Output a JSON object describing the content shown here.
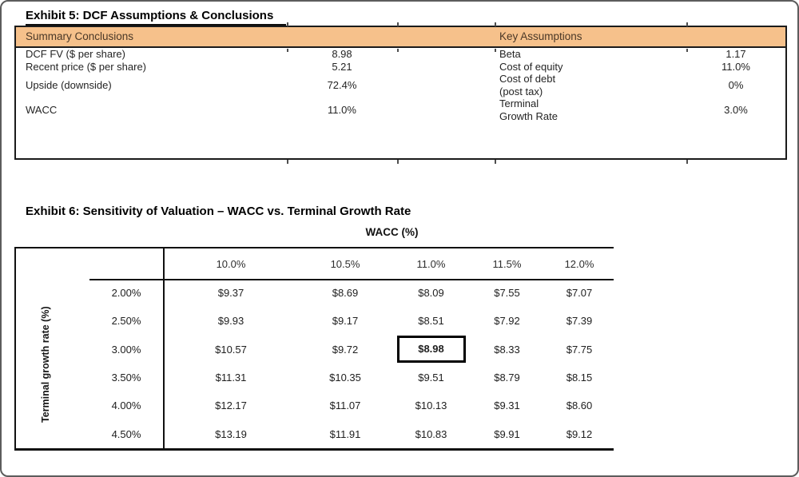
{
  "exhibit5": {
    "title": "Exhibit 5: DCF Assumptions & Conclusions",
    "header": {
      "left": "Summary Conclusions",
      "right": "Key Assumptions",
      "bg_color": "#F6C18B"
    },
    "rows": [
      {
        "label": "DCF FV ($ per share)",
        "value": "8.98",
        "key_label": "Beta",
        "key_label2": "",
        "key_value": "1.17"
      },
      {
        "label": "Recent price ($ per share)",
        "value": "5.21",
        "key_label": "Cost of equity",
        "key_label2": "",
        "key_value": "11.0%"
      },
      {
        "label": "Upside (downside)",
        "value": "72.4%",
        "key_label": "Cost of debt",
        "key_label2": "(post tax)",
        "key_value": "0%"
      },
      {
        "label": "WACC",
        "value": "11.0%",
        "key_label": "Terminal",
        "key_label2": "Growth Rate",
        "key_value": "3.0%"
      }
    ],
    "stripe_color": "#EDEDED"
  },
  "exhibit6": {
    "title": "Exhibit 6: Sensitivity of Valuation – WACC vs. Terminal Growth Rate",
    "col_axis_label": "WACC (%)",
    "row_axis_label": "Terminal growth rate (%)",
    "columns": [
      "10.0%",
      "10.5%",
      "11.0%",
      "11.5%",
      "12.0%"
    ],
    "rows": [
      {
        "label": "2.00%",
        "values": [
          "$9.37",
          "$8.69",
          "$8.09",
          "$7.55",
          "$7.07"
        ]
      },
      {
        "label": "2.50%",
        "values": [
          "$9.93",
          "$9.17",
          "$8.51",
          "$7.92",
          "$7.39"
        ]
      },
      {
        "label": "3.00%",
        "values": [
          "$10.57",
          "$9.72",
          "$8.98",
          "$8.33",
          "$7.75"
        ]
      },
      {
        "label": "3.50%",
        "values": [
          "$11.31",
          "$10.35",
          "$9.51",
          "$8.79",
          "$8.15"
        ]
      },
      {
        "label": "4.00%",
        "values": [
          "$12.17",
          "$11.07",
          "$10.13",
          "$9.31",
          "$8.60"
        ]
      },
      {
        "label": "4.50%",
        "values": [
          "$13.19",
          "$11.91",
          "$10.83",
          "$9.91",
          "$9.12"
        ]
      }
    ],
    "highlight": {
      "row_label": "3.00%",
      "column_label": "11.0%",
      "value": "$8.98"
    }
  },
  "chart_data": {
    "type": "table",
    "title": "Sensitivity of Valuation – WACC vs. Terminal Growth Rate",
    "xlabel": "WACC (%)",
    "ylabel": "Terminal growth rate (%)",
    "columns": [
      10.0,
      10.5,
      11.0,
      11.5,
      12.0
    ],
    "row_categories": [
      2.0,
      2.5,
      3.0,
      3.5,
      4.0,
      4.5
    ],
    "values": [
      [
        9.37,
        8.69,
        8.09,
        7.55,
        7.07
      ],
      [
        9.93,
        9.17,
        8.51,
        7.92,
        7.39
      ],
      [
        10.57,
        9.72,
        8.98,
        8.33,
        7.75
      ],
      [
        11.31,
        10.35,
        9.51,
        8.79,
        8.15
      ],
      [
        12.17,
        11.07,
        10.13,
        9.31,
        8.6
      ],
      [
        13.19,
        11.91,
        10.83,
        9.91,
        9.12
      ]
    ],
    "highlighted_value": 8.98
  }
}
